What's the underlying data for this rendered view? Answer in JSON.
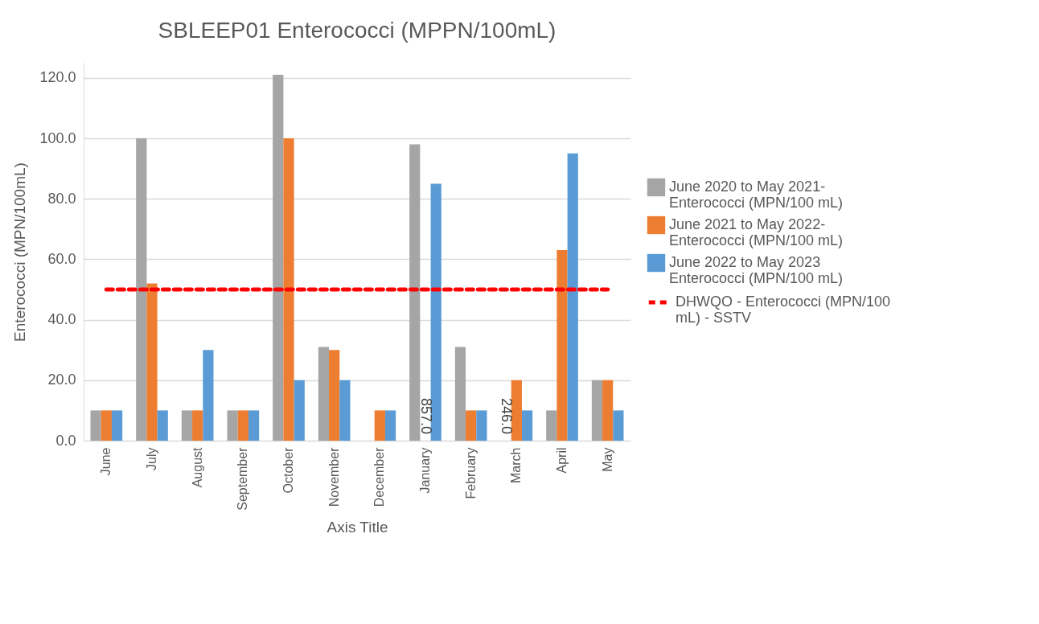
{
  "chart_data": {
    "type": "bar",
    "title": "SBLEEP01 Enterococci (MPPN/100mL)",
    "xlabel": "Axis Title",
    "ylabel": "Enterococci (MPN/100mL)",
    "categories": [
      "June",
      "July",
      "August",
      "September",
      "October",
      "November",
      "December",
      "January",
      "February",
      "March",
      "April",
      "May"
    ],
    "series": [
      {
        "name": "June 2020 to May 2021-Enterococci (MPN/100 mL)",
        "color": "#a5a5a5",
        "values": [
          10,
          100,
          10,
          10,
          121,
          31,
          null,
          98,
          31,
          null,
          10,
          20
        ],
        "value_labels": [
          null,
          null,
          null,
          null,
          null,
          null,
          null,
          null,
          null,
          "246.0",
          null,
          null
        ]
      },
      {
        "name": "June 2021 to May 2022-Enterococci (MPN/100 mL)",
        "color": "#ed7d31",
        "values": [
          10,
          52,
          10,
          10,
          100,
          30,
          10,
          null,
          10,
          20,
          63,
          20
        ],
        "value_labels": [
          null,
          null,
          null,
          null,
          null,
          null,
          null,
          "857.0",
          null,
          null,
          null,
          null
        ]
      },
      {
        "name": "June 2022 to May 2023 Enterococci (MPN/100 mL)",
        "color": "#5b9bd5",
        "values": [
          10,
          10,
          30,
          10,
          20,
          20,
          10,
          85,
          10,
          10,
          95,
          10
        ]
      },
      {
        "name": "DHWQO - Enterococci (MPN/100 mL) - SSTV",
        "type": "line",
        "line_style": "dashed",
        "color": "#ff0000",
        "values": [
          50,
          50,
          50,
          50,
          50,
          50,
          50,
          50,
          50,
          50,
          50,
          50
        ]
      }
    ],
    "ylim": [
      0,
      125
    ],
    "yticks": [
      {
        "value": 0,
        "label": "0.0"
      },
      {
        "value": 20,
        "label": "20.0"
      },
      {
        "value": 40,
        "label": "40.0"
      },
      {
        "value": 60,
        "label": "60.0"
      },
      {
        "value": 80,
        "label": "80.0"
      },
      {
        "value": 100,
        "label": "100.0"
      },
      {
        "value": 120,
        "label": "120.0"
      }
    ],
    "grid": "y",
    "legend": "right"
  }
}
